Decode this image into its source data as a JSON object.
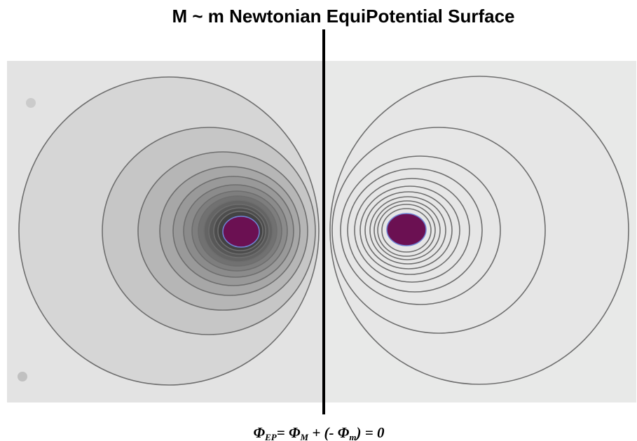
{
  "title": "M ~ m  Newtonian EquiPotential Surface",
  "formula": {
    "segments": [
      {
        "text": "Φ",
        "sub": "EP"
      },
      {
        "text": "=  Φ",
        "sub": "M"
      },
      {
        "text": " +  (- Φ",
        "sub": "m"
      },
      {
        "text": ") =  0"
      }
    ]
  }
}
